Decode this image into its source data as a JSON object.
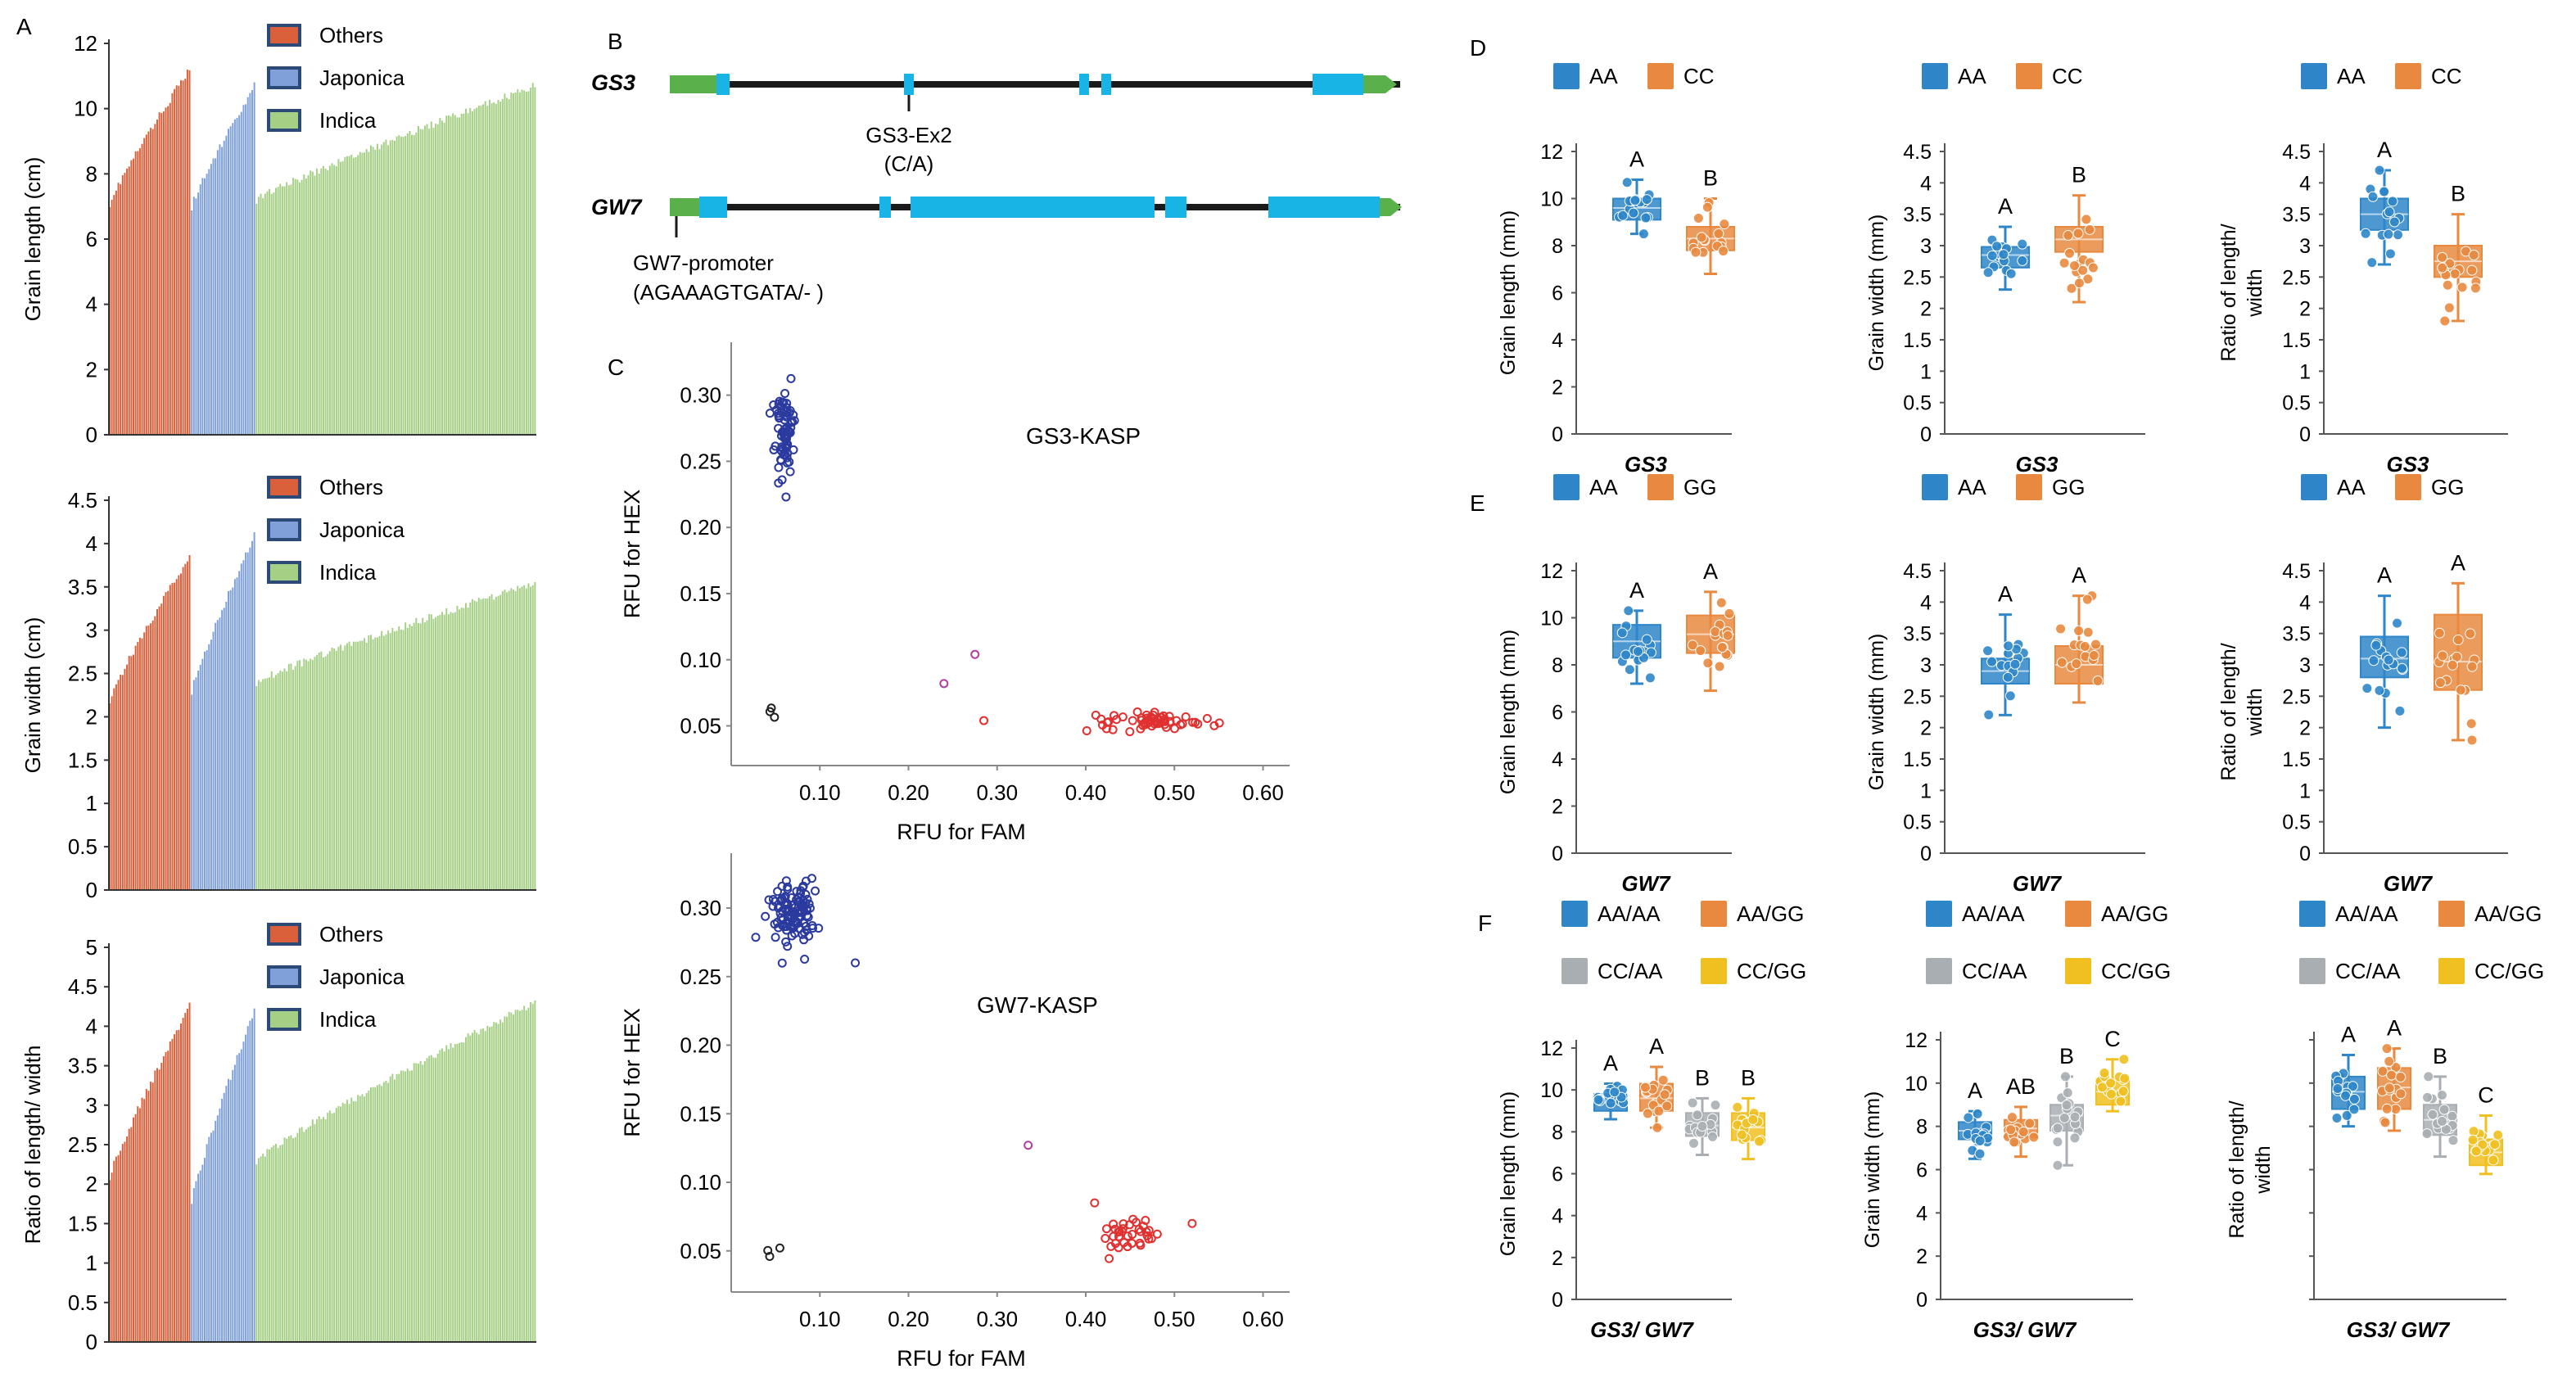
{
  "figure": {
    "panel_letters": {
      "A": "A",
      "B": "B",
      "C": "C",
      "D": "D",
      "E": "E",
      "F": "F"
    },
    "subgroup_legend": [
      "Others",
      "Japonica",
      "Indica"
    ],
    "genes": {
      "gs3": {
        "name": "GS3",
        "marker_label": "GS3-Ex2",
        "marker_allele": "(C/A)"
      },
      "gw7": {
        "name": "GW7",
        "marker_label": "GW7-promoter",
        "marker_allele": "(AGAAAGTGATA/- )"
      }
    }
  },
  "colors": {
    "others": "#d9603a",
    "japonica": "#7fa0d8",
    "indica": "#a6cf86",
    "AA": "#2e86c9",
    "CC": "#e8893f",
    "GG": "#e8893f",
    "CCAA": "#a9aeb3",
    "CCGG": "#f0c020",
    "blue_pts": "#2b3a9e",
    "red_pts": "#e03030",
    "black_pts": "#222222",
    "pink_pts": "#b040a0",
    "exon": "#19b4e6",
    "utr": "#5ab04a",
    "intron": "#1a1a1a"
  },
  "chart_data": [
    {
      "id": "A1",
      "type": "bar",
      "ylabel": "Grain length (cm)",
      "ylim": [
        0,
        12
      ],
      "yticks": [
        0,
        2,
        4,
        6,
        8,
        10,
        12
      ],
      "series": [
        {
          "name": "Others",
          "n": 38,
          "start": 7.1,
          "end": 11.2
        },
        {
          "name": "Japonica",
          "n": 30,
          "start": 7.0,
          "end": 10.7
        },
        {
          "name": "Indica",
          "n": 130,
          "start": 7.2,
          "end": 10.7
        }
      ],
      "legend": [
        "Others",
        "Japonica",
        "Indica"
      ]
    },
    {
      "id": "A2",
      "type": "bar",
      "ylabel": "Grain width (cm)",
      "ylim": [
        0,
        4.5
      ],
      "yticks": [
        0,
        0.5,
        1,
        1.5,
        2,
        2.5,
        3,
        3.5,
        4,
        4.5
      ],
      "series": [
        {
          "name": "Others",
          "n": 38,
          "start": 2.2,
          "end": 3.85
        },
        {
          "name": "Japonica",
          "n": 30,
          "start": 2.3,
          "end": 4.1
        },
        {
          "name": "Indica",
          "n": 130,
          "start": 2.4,
          "end": 3.55
        }
      ],
      "legend": [
        "Others",
        "Japonica",
        "Indica"
      ]
    },
    {
      "id": "A3",
      "type": "bar",
      "ylabel": "Ratio of length/ width",
      "ylim": [
        0,
        5
      ],
      "yticks": [
        0,
        0.5,
        1,
        1.5,
        2,
        2.5,
        3,
        3.5,
        4,
        4.5,
        5
      ],
      "series": [
        {
          "name": "Others",
          "n": 38,
          "start": 2.1,
          "end": 4.25
        },
        {
          "name": "Japonica",
          "n": 30,
          "start": 1.8,
          "end": 4.2
        },
        {
          "name": "Indica",
          "n": 130,
          "start": 2.3,
          "end": 4.3
        }
      ],
      "legend": [
        "Others",
        "Japonica",
        "Indica"
      ]
    },
    {
      "id": "C1",
      "type": "scatter",
      "title": "GS3-KASP",
      "xlabel": "RFU for FAM",
      "ylabel": "RFU for HEX",
      "xlim": [
        0,
        0.63
      ],
      "ylim": [
        0.02,
        0.34
      ],
      "xticks": [
        0.1,
        0.2,
        0.3,
        0.4,
        0.5,
        0.6
      ],
      "yticks": [
        0.05,
        0.1,
        0.15,
        0.2,
        0.25,
        0.3
      ],
      "clusters": [
        {
          "color": "blue_pts",
          "n": 70,
          "cx": 0.06,
          "cy": 0.27,
          "sx": 0.006,
          "sy": 0.014
        },
        {
          "color": "red_pts",
          "n": 60,
          "cx": 0.47,
          "cy": 0.053,
          "sx": 0.035,
          "sy": 0.003
        },
        {
          "color": "black_pts",
          "n": 3,
          "cx": 0.05,
          "cy": 0.06,
          "sx": 0.004,
          "sy": 0.006
        }
      ],
      "points": [
        {
          "x": 0.24,
          "y": 0.082,
          "color": "pink_pts"
        },
        {
          "x": 0.275,
          "y": 0.104,
          "color": "pink_pts"
        },
        {
          "x": 0.285,
          "y": 0.054,
          "color": "red_pts"
        },
        {
          "x": 0.07,
          "y": 0.285,
          "color": "blue_pts"
        }
      ]
    },
    {
      "id": "C2",
      "type": "scatter",
      "title": "GW7-KASP",
      "xlabel": "RFU for FAM",
      "ylabel": "RFU for HEX",
      "xlim": [
        0,
        0.63
      ],
      "ylim": [
        0.02,
        0.34
      ],
      "xticks": [
        0.1,
        0.2,
        0.3,
        0.4,
        0.5,
        0.6
      ],
      "yticks": [
        0.05,
        0.1,
        0.15,
        0.2,
        0.25,
        0.3
      ],
      "clusters": [
        {
          "color": "blue_pts",
          "n": 110,
          "cx": 0.07,
          "cy": 0.298,
          "sx": 0.012,
          "sy": 0.012
        },
        {
          "color": "red_pts",
          "n": 35,
          "cx": 0.45,
          "cy": 0.062,
          "sx": 0.02,
          "sy": 0.007
        },
        {
          "color": "black_pts",
          "n": 3,
          "cx": 0.045,
          "cy": 0.05,
          "sx": 0.004,
          "sy": 0.002
        }
      ],
      "points": [
        {
          "x": 0.14,
          "y": 0.26,
          "color": "blue_pts"
        },
        {
          "x": 0.335,
          "y": 0.127,
          "color": "pink_pts"
        },
        {
          "x": 0.52,
          "y": 0.07,
          "color": "red_pts"
        },
        {
          "x": 0.41,
          "y": 0.085,
          "color": "red_pts"
        }
      ]
    },
    {
      "id": "D1",
      "type": "box",
      "xlabel": "GS3",
      "ylabel": "Grain length (mm)",
      "ylim": [
        0,
        12
      ],
      "yticks": [
        0,
        2,
        4,
        6,
        8,
        10,
        12
      ],
      "legend": [
        "AA",
        "CC"
      ],
      "groups": [
        {
          "name": "AA",
          "color": "AA",
          "q1": 9.1,
          "median": 9.6,
          "q3": 10.0,
          "min": 8.5,
          "max": 10.8,
          "letter": "A"
        },
        {
          "name": "CC",
          "color": "CC",
          "q1": 7.8,
          "median": 8.3,
          "q3": 8.8,
          "min": 6.8,
          "max": 10.0,
          "letter": "B"
        }
      ]
    },
    {
      "id": "D2",
      "type": "box",
      "xlabel": "GS3",
      "ylabel": "Grain width (mm)",
      "ylim": [
        0,
        4.5
      ],
      "yticks": [
        0,
        0.5,
        1,
        1.5,
        2,
        2.5,
        3,
        3.5,
        4,
        4.5
      ],
      "legend": [
        "AA",
        "CC"
      ],
      "groups": [
        {
          "name": "AA",
          "color": "AA",
          "q1": 2.65,
          "median": 2.85,
          "q3": 2.98,
          "min": 2.3,
          "max": 3.3,
          "letter": "A"
        },
        {
          "name": "CC",
          "color": "CC",
          "q1": 2.9,
          "median": 3.1,
          "q3": 3.3,
          "min": 2.1,
          "max": 3.8,
          "letter": "B"
        }
      ]
    },
    {
      "id": "D3",
      "type": "box",
      "xlabel": "GS3",
      "ylabel": "Ratio of length/ width",
      "ylim": [
        0,
        4.5
      ],
      "yticks": [
        0,
        0.5,
        1,
        1.5,
        2,
        2.5,
        3,
        3.5,
        4,
        4.5
      ],
      "legend": [
        "AA",
        "CC"
      ],
      "groups": [
        {
          "name": "AA",
          "color": "AA",
          "q1": 3.25,
          "median": 3.5,
          "q3": 3.75,
          "min": 2.7,
          "max": 4.2,
          "letter": "A"
        },
        {
          "name": "CC",
          "color": "CC",
          "q1": 2.5,
          "median": 2.75,
          "q3": 3.0,
          "min": 1.8,
          "max": 3.5,
          "letter": "B"
        }
      ]
    },
    {
      "id": "E1",
      "type": "box",
      "xlabel": "GW7",
      "ylabel": "Grain length (mm)",
      "ylim": [
        0,
        12
      ],
      "yticks": [
        0,
        2,
        4,
        6,
        8,
        10,
        12
      ],
      "legend": [
        "AA",
        "GG"
      ],
      "groups": [
        {
          "name": "AA",
          "color": "AA",
          "q1": 8.3,
          "median": 9.0,
          "q3": 9.7,
          "min": 7.2,
          "max": 10.3,
          "letter": "A"
        },
        {
          "name": "GG",
          "color": "GG",
          "q1": 8.5,
          "median": 9.3,
          "q3": 10.1,
          "min": 6.9,
          "max": 11.1,
          "letter": "A"
        }
      ]
    },
    {
      "id": "E2",
      "type": "box",
      "xlabel": "GW7",
      "ylabel": "Grain width (mm)",
      "ylim": [
        0,
        4.5
      ],
      "yticks": [
        0,
        0.5,
        1,
        1.5,
        2,
        2.5,
        3,
        3.5,
        4,
        4.5
      ],
      "legend": [
        "AA",
        "GG"
      ],
      "groups": [
        {
          "name": "AA",
          "color": "AA",
          "q1": 2.7,
          "median": 2.9,
          "q3": 3.1,
          "min": 2.2,
          "max": 3.8,
          "letter": "A"
        },
        {
          "name": "GG",
          "color": "GG",
          "q1": 2.7,
          "median": 3.0,
          "q3": 3.3,
          "min": 2.4,
          "max": 4.1,
          "letter": "A"
        }
      ]
    },
    {
      "id": "E3",
      "type": "box",
      "xlabel": "GW7",
      "ylabel": "Ratio of length/ width",
      "ylim": [
        0,
        4.5
      ],
      "yticks": [
        0,
        0.5,
        1,
        1.5,
        2,
        2.5,
        3,
        3.5,
        4,
        4.5
      ],
      "legend": [
        "AA",
        "GG"
      ],
      "groups": [
        {
          "name": "AA",
          "color": "AA",
          "q1": 2.8,
          "median": 3.1,
          "q3": 3.45,
          "min": 2.0,
          "max": 4.1,
          "letter": "A"
        },
        {
          "name": "GG",
          "color": "GG",
          "q1": 2.6,
          "median": 3.05,
          "q3": 3.8,
          "min": 1.8,
          "max": 4.3,
          "letter": "A"
        }
      ]
    },
    {
      "id": "F1",
      "type": "box",
      "xlabel": "GS3/ GW7",
      "ylabel": "Grain length (mm)",
      "ylim": [
        0,
        12
      ],
      "yticks": [
        0,
        2,
        4,
        6,
        8,
        10,
        12
      ],
      "legend": [
        "AA/AA",
        "AA/GG",
        "CC/AA",
        "CC/GG"
      ],
      "groups": [
        {
          "name": "AA/AA",
          "color": "AA",
          "q1": 9.0,
          "median": 9.4,
          "q3": 9.8,
          "min": 8.6,
          "max": 10.3,
          "letter": "A"
        },
        {
          "name": "AA/GG",
          "color": "GG",
          "q1": 9.0,
          "median": 9.6,
          "q3": 10.3,
          "min": 8.2,
          "max": 11.1,
          "letter": "A"
        },
        {
          "name": "CC/AA",
          "color": "CCAA",
          "q1": 7.8,
          "median": 8.3,
          "q3": 8.9,
          "min": 6.9,
          "max": 9.6,
          "letter": "B"
        },
        {
          "name": "CC/GG",
          "color": "CCGG",
          "q1": 7.6,
          "median": 8.2,
          "q3": 8.9,
          "min": 6.7,
          "max": 9.6,
          "letter": "B"
        }
      ]
    },
    {
      "id": "F2",
      "type": "box",
      "xlabel": "GS3/ GW7",
      "ylabel": "Grain width (mm)",
      "ylim": [
        0,
        12
      ],
      "yticks": [],
      "legend": [
        "AA/AA",
        "AA/GG",
        "CC/AA",
        "CC/GG"
      ],
      "groups": [
        {
          "name": "AA/AA",
          "color": "AA",
          "q1": 7.4,
          "median": 7.8,
          "q3": 8.2,
          "min": 6.5,
          "max": 8.7,
          "letter": "A"
        },
        {
          "name": "AA/GG",
          "color": "GG",
          "q1": 7.5,
          "median": 7.9,
          "q3": 8.3,
          "min": 6.6,
          "max": 8.9,
          "letter": "AB"
        },
        {
          "name": "CC/AA",
          "color": "CCAA",
          "q1": 7.8,
          "median": 8.5,
          "q3": 9.0,
          "min": 6.2,
          "max": 10.3,
          "letter": "B"
        },
        {
          "name": "CC/GG",
          "color": "CCGG",
          "q1": 9.0,
          "median": 9.6,
          "q3": 10.2,
          "min": 8.7,
          "max": 11.1,
          "letter": "C"
        }
      ]
    },
    {
      "id": "F3",
      "type": "box",
      "xlabel": "GS3/ GW7",
      "ylabel": "Ratio of  length/ width",
      "ylim": [
        0,
        12
      ],
      "yticks": [],
      "legend": [
        "AA/AA",
        "AA/GG",
        "CC/AA",
        "CC/GG"
      ],
      "groups": [
        {
          "name": "AA/AA",
          "color": "AA",
          "q1": 8.8,
          "median": 9.6,
          "q3": 10.3,
          "min": 8.0,
          "max": 11.3,
          "letter": "A"
        },
        {
          "name": "AA/GG",
          "color": "GG",
          "q1": 8.8,
          "median": 9.8,
          "q3": 10.7,
          "min": 7.8,
          "max": 11.6,
          "letter": "A"
        },
        {
          "name": "CC/AA",
          "color": "CCAA",
          "q1": 7.6,
          "median": 8.3,
          "q3": 9.0,
          "min": 6.6,
          "max": 10.3,
          "letter": "B"
        },
        {
          "name": "CC/GG",
          "color": "CCGG",
          "q1": 6.2,
          "median": 6.8,
          "q3": 7.4,
          "min": 5.8,
          "max": 8.5,
          "letter": "C"
        }
      ]
    }
  ]
}
